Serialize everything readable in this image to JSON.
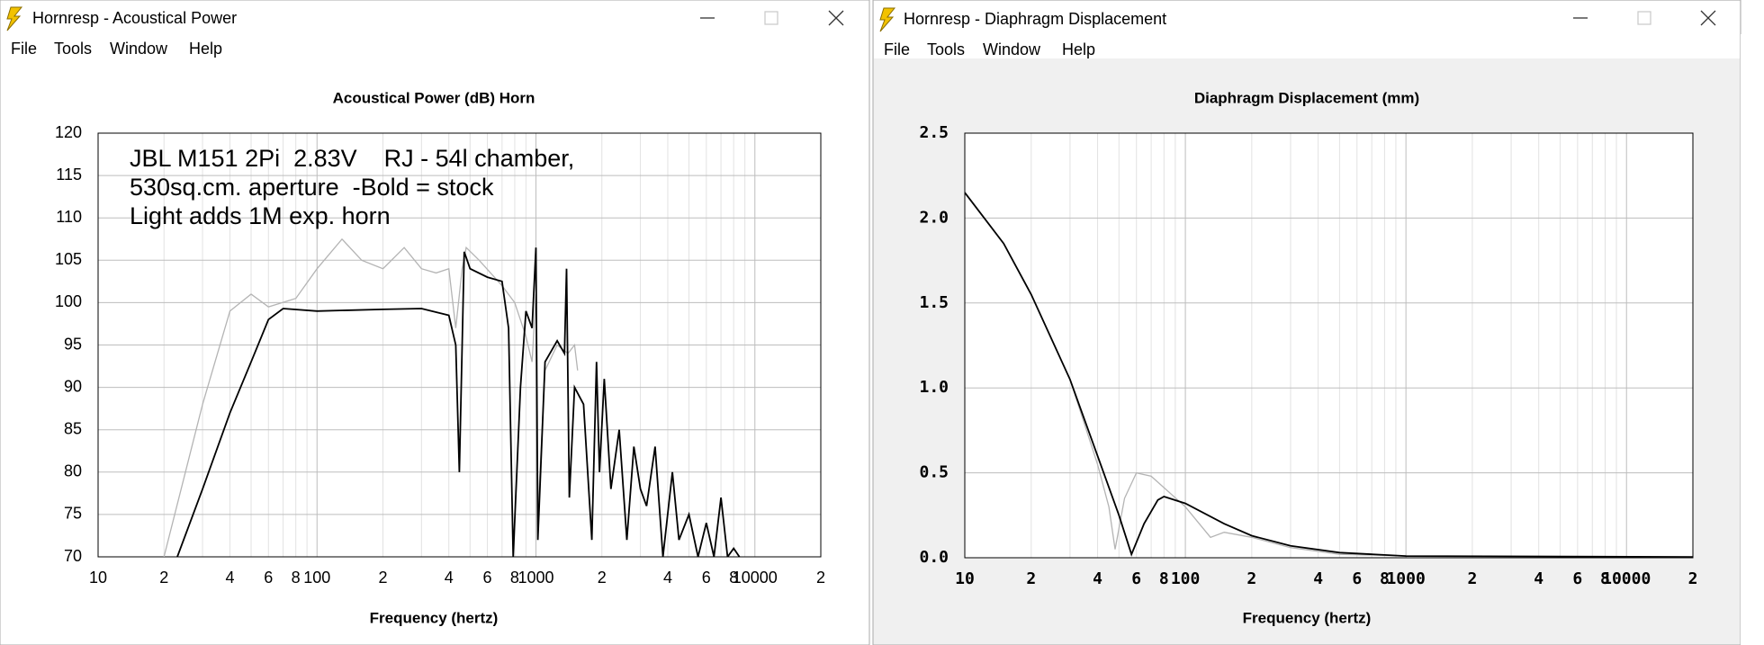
{
  "windows": [
    {
      "title": "Hornresp - Acoustical Power",
      "menu": [
        "File",
        "Tools",
        "Window",
        "Help"
      ]
    },
    {
      "title": "Hornresp - Diaphragm Displacement",
      "menu": [
        "File",
        "Tools",
        "Window",
        "Help"
      ]
    }
  ],
  "chart_data": [
    {
      "type": "line",
      "title": "Acoustical Power (dB)   Horn",
      "x_label": "Frequency (hertz)",
      "annotations": [
        "JBL M151 2Pi  2.83V    RJ - 54l chamber,",
        "530sq.cm. aperture  -Bold = stock",
        "Light adds 1M exp. horn"
      ],
      "xscale": "log",
      "grid": true,
      "xlim": [
        10,
        20000
      ],
      "xticks": [
        10,
        {
          "value": 20,
          "label": "2"
        },
        {
          "value": 40,
          "label": "4"
        },
        {
          "value": 60,
          "label": "6"
        },
        {
          "value": 80,
          "label": "8"
        },
        100,
        {
          "value": 200,
          "label": "2"
        },
        {
          "value": 400,
          "label": "4"
        },
        {
          "value": 600,
          "label": "6"
        },
        {
          "value": 800,
          "label": "8"
        },
        1000,
        {
          "value": 2000,
          "label": "2"
        },
        {
          "value": 4000,
          "label": "4"
        },
        {
          "value": 6000,
          "label": "6"
        },
        {
          "value": 8000,
          "label": "8"
        },
        10000,
        {
          "value": 20000,
          "label": "2"
        }
      ],
      "x_minor_ticks": [
        30,
        50,
        70,
        90,
        300,
        500,
        700,
        900,
        3000,
        5000,
        7000,
        9000
      ],
      "ylim": [
        70,
        120
      ],
      "yticks": [
        70,
        75,
        80,
        85,
        90,
        95,
        100,
        105,
        110,
        115,
        120
      ],
      "series": [
        {
          "color": "#b4b4b4",
          "x": [
            20,
            30,
            40,
            50,
            60,
            80,
            100,
            130,
            160,
            200,
            250,
            300,
            350,
            400,
            430,
            460,
            480,
            550,
            700,
            800,
            900,
            960,
            1000,
            1020,
            1100,
            1250,
            1400,
            1500,
            1550
          ],
          "values": [
            70,
            88,
            99,
            101,
            99.5,
            100.5,
            104,
            107.5,
            105,
            104,
            106.5,
            104,
            103.5,
            104,
            97,
            104,
            106.5,
            105,
            102,
            100,
            96,
            93,
            101,
            75,
            92,
            95,
            94,
            95,
            92
          ]
        },
        {
          "color": "#000000",
          "x": [
            23,
            30,
            40,
            50,
            60,
            70,
            100,
            200,
            300,
            400,
            430,
            447,
            470,
            500,
            600,
            700,
            750,
            787,
            850,
            900,
            960,
            1000,
            1020,
            1100,
            1250,
            1350,
            1380,
            1420,
            1500,
            1650,
            1800,
            1890,
            1950,
            2050,
            2200,
            2400,
            2600,
            2800,
            3000,
            3200,
            3500,
            3800,
            4200,
            4500,
            5000,
            5500,
            6000,
            6500,
            7000,
            7500,
            8000,
            8500
          ],
          "values": [
            70,
            78,
            87,
            93,
            98,
            99.3,
            99,
            99.2,
            99.3,
            98.5,
            95,
            80,
            106,
            104,
            103,
            102.5,
            97,
            70,
            90,
            99,
            97,
            106.5,
            72,
            93,
            95.5,
            94,
            104,
            77,
            90,
            88,
            72,
            93,
            80,
            91,
            78,
            85,
            72,
            83,
            78,
            76,
            83,
            70,
            80,
            72,
            75,
            70,
            74,
            70,
            77,
            70,
            71,
            70
          ]
        }
      ]
    },
    {
      "type": "line",
      "title": "Diaphragm Displacement (mm)",
      "x_label": "Frequency (hertz)",
      "xscale": "log",
      "grid": true,
      "xlim": [
        10,
        20000
      ],
      "xticks": [
        10,
        {
          "value": 20,
          "label": "2"
        },
        {
          "value": 40,
          "label": "4"
        },
        {
          "value": 60,
          "label": "6"
        },
        {
          "value": 80,
          "label": "8"
        },
        100,
        {
          "value": 200,
          "label": "2"
        },
        {
          "value": 400,
          "label": "4"
        },
        {
          "value": 600,
          "label": "6"
        },
        {
          "value": 800,
          "label": "8"
        },
        1000,
        {
          "value": 2000,
          "label": "2"
        },
        {
          "value": 4000,
          "label": "4"
        },
        {
          "value": 6000,
          "label": "6"
        },
        {
          "value": 8000,
          "label": "8"
        },
        10000,
        {
          "value": 20000,
          "label": "2"
        }
      ],
      "x_minor_ticks": [
        30,
        50,
        70,
        90,
        300,
        500,
        700,
        900,
        3000,
        5000,
        7000,
        9000
      ],
      "ylim": [
        0,
        2.5
      ],
      "yticks": [
        {
          "value": 0,
          "label": "0.0"
        },
        0.5,
        {
          "value": 1,
          "label": "1.0"
        },
        1.5,
        {
          "value": 2,
          "label": "2.0"
        },
        2.5
      ],
      "series": [
        {
          "color": "#b4b4b4",
          "x": [
            10,
            15,
            20,
            30,
            40,
            45,
            48,
            53,
            60,
            70,
            100,
            130,
            150,
            200,
            300,
            500,
            1000,
            20000
          ],
          "values": [
            2.15,
            1.85,
            1.55,
            1.05,
            0.55,
            0.3,
            0.05,
            0.35,
            0.5,
            0.48,
            0.3,
            0.12,
            0.15,
            0.12,
            0.06,
            0.02,
            0.01,
            0.005
          ]
        },
        {
          "color": "#000000",
          "x": [
            10,
            15,
            20,
            30,
            40,
            50,
            57,
            65,
            75,
            80,
            100,
            150,
            200,
            300,
            500,
            1000,
            20000
          ],
          "values": [
            2.15,
            1.85,
            1.55,
            1.05,
            0.6,
            0.25,
            0.02,
            0.2,
            0.34,
            0.36,
            0.32,
            0.2,
            0.13,
            0.07,
            0.03,
            0.01,
            0.005
          ]
        }
      ]
    }
  ]
}
